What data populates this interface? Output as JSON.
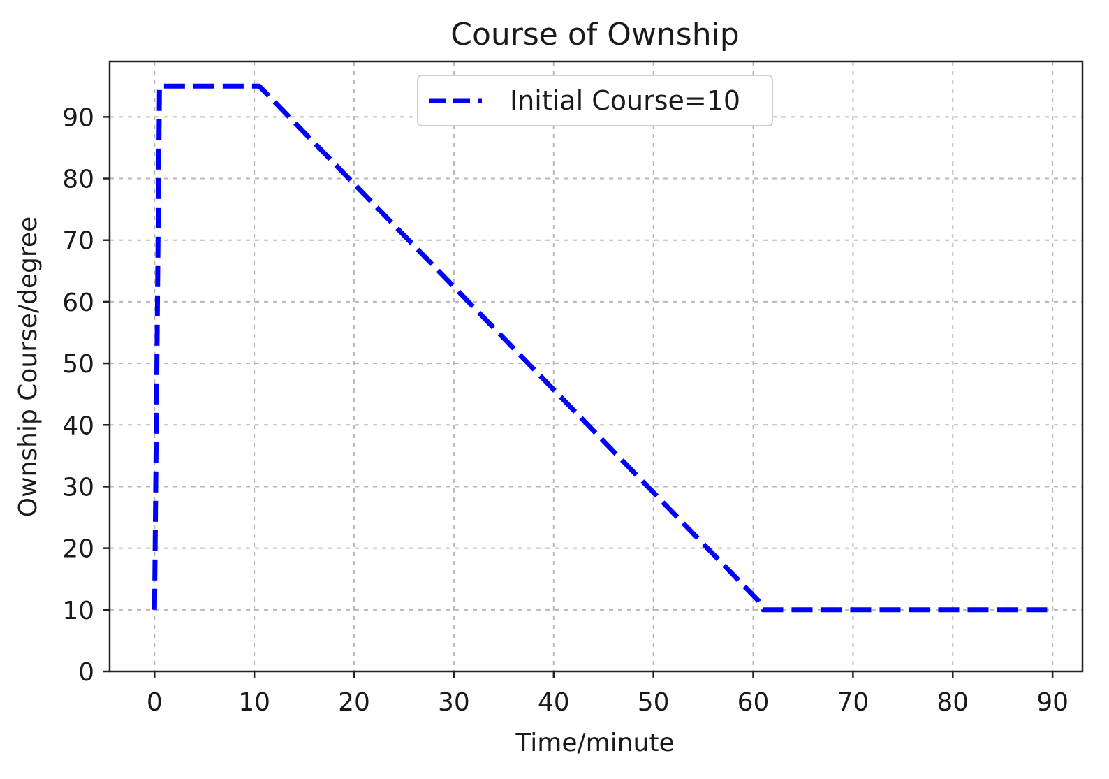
{
  "chart_data": {
    "type": "line",
    "title": "Course of Ownship",
    "xlabel": "Time/minute",
    "ylabel": "Ownship Course/degree",
    "xlim": [
      -4.5,
      93
    ],
    "ylim": [
      0,
      99
    ],
    "xticks": [
      0,
      10,
      20,
      30,
      40,
      50,
      60,
      70,
      80,
      90
    ],
    "yticks": [
      0,
      10,
      20,
      30,
      40,
      50,
      60,
      70,
      80,
      90
    ],
    "grid": true,
    "legend_position": "upper center",
    "series": [
      {
        "name": "Initial Course=10",
        "color": "#0000ff",
        "line_style": "dashed",
        "x": [
          0,
          0.5,
          10.5,
          60.5,
          61,
          90
        ],
        "y": [
          10,
          95,
          95,
          11.5,
          10,
          10
        ]
      }
    ]
  }
}
